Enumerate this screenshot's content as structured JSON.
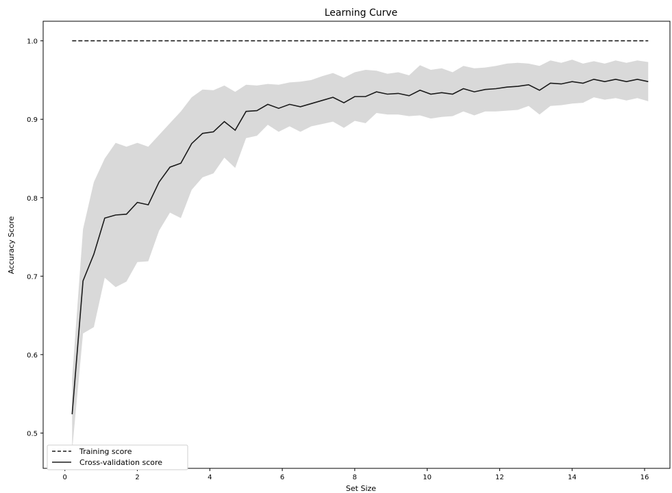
{
  "chart_data": {
    "type": "line",
    "title": "Learning Curve",
    "xlabel": "Set Size",
    "ylabel": "Accuracy Score",
    "xlim": [
      -0.6,
      16.7
    ],
    "ylim": [
      0.455,
      1.025
    ],
    "xticks": [
      0,
      2,
      4,
      6,
      8,
      10,
      12,
      14,
      16
    ],
    "yticks": [
      0.5,
      0.6,
      0.7,
      0.8,
      0.9,
      1.0
    ],
    "xtick_labels": [
      "0",
      "2",
      "4",
      "6",
      "8",
      "10",
      "12",
      "14",
      "16"
    ],
    "ytick_labels": [
      "0.5",
      "0.6",
      "0.7",
      "0.8",
      "0.9",
      "1.0"
    ],
    "grid": false,
    "legend_position": "lower-left",
    "x": [
      0.2,
      0.5,
      0.8,
      1.1,
      1.4,
      1.7,
      2.0,
      2.3,
      2.6,
      2.9,
      3.2,
      3.5,
      3.8,
      4.1,
      4.4,
      4.7,
      5.0,
      5.3,
      5.6,
      5.9,
      6.2,
      6.5,
      6.8,
      7.1,
      7.4,
      7.7,
      8.0,
      8.3,
      8.6,
      8.9,
      9.2,
      9.5,
      9.8,
      10.1,
      10.4,
      10.7,
      11.0,
      11.3,
      11.6,
      11.9,
      12.2,
      12.5,
      12.8,
      13.1,
      13.4,
      13.7,
      14.0,
      14.3,
      14.6,
      14.9,
      15.2,
      15.5,
      15.8,
      16.1
    ],
    "series": [
      {
        "name": "Training score",
        "style": "dashed",
        "color": "#1a1a1a",
        "values": [
          1.0,
          1.0,
          1.0,
          1.0,
          1.0,
          1.0,
          1.0,
          1.0,
          1.0,
          1.0,
          1.0,
          1.0,
          1.0,
          1.0,
          1.0,
          1.0,
          1.0,
          1.0,
          1.0,
          1.0,
          1.0,
          1.0,
          1.0,
          1.0,
          1.0,
          1.0,
          1.0,
          1.0,
          1.0,
          1.0,
          1.0,
          1.0,
          1.0,
          1.0,
          1.0,
          1.0,
          1.0,
          1.0,
          1.0,
          1.0,
          1.0,
          1.0,
          1.0,
          1.0,
          1.0,
          1.0,
          1.0,
          1.0,
          1.0,
          1.0,
          1.0,
          1.0,
          1.0,
          1.0
        ]
      },
      {
        "name": "Cross-validation score",
        "style": "solid",
        "color": "#1a1a1a",
        "values": [
          0.524,
          0.694,
          0.728,
          0.774,
          0.778,
          0.779,
          0.794,
          0.791,
          0.82,
          0.839,
          0.844,
          0.869,
          0.882,
          0.884,
          0.897,
          0.886,
          0.91,
          0.911,
          0.919,
          0.914,
          0.919,
          0.916,
          0.92,
          0.924,
          0.928,
          0.921,
          0.929,
          0.929,
          0.935,
          0.932,
          0.933,
          0.93,
          0.937,
          0.932,
          0.934,
          0.932,
          0.939,
          0.935,
          0.938,
          0.939,
          0.941,
          0.942,
          0.944,
          0.937,
          0.946,
          0.945,
          0.948,
          0.946,
          0.951,
          0.948,
          0.951,
          0.948,
          0.951,
          0.948
        ],
        "band_upper": [
          0.57,
          0.76,
          0.82,
          0.85,
          0.87,
          0.865,
          0.87,
          0.865,
          0.88,
          0.895,
          0.91,
          0.928,
          0.938,
          0.937,
          0.943,
          0.935,
          0.944,
          0.943,
          0.945,
          0.944,
          0.947,
          0.948,
          0.95,
          0.955,
          0.959,
          0.953,
          0.96,
          0.963,
          0.962,
          0.958,
          0.96,
          0.956,
          0.969,
          0.963,
          0.965,
          0.96,
          0.968,
          0.965,
          0.966,
          0.968,
          0.971,
          0.972,
          0.971,
          0.968,
          0.975,
          0.972,
          0.976,
          0.971,
          0.974,
          0.971,
          0.975,
          0.972,
          0.975,
          0.973
        ],
        "band_lower": [
          0.478,
          0.627,
          0.635,
          0.698,
          0.686,
          0.693,
          0.718,
          0.719,
          0.758,
          0.781,
          0.774,
          0.81,
          0.826,
          0.831,
          0.851,
          0.838,
          0.876,
          0.879,
          0.893,
          0.884,
          0.891,
          0.884,
          0.891,
          0.894,
          0.897,
          0.889,
          0.898,
          0.895,
          0.908,
          0.906,
          0.906,
          0.904,
          0.905,
          0.901,
          0.903,
          0.904,
          0.91,
          0.905,
          0.91,
          0.91,
          0.911,
          0.912,
          0.917,
          0.906,
          0.917,
          0.918,
          0.92,
          0.921,
          0.928,
          0.925,
          0.927,
          0.924,
          0.927,
          0.923
        ],
        "band_color": "#d9d9d9"
      }
    ]
  }
}
